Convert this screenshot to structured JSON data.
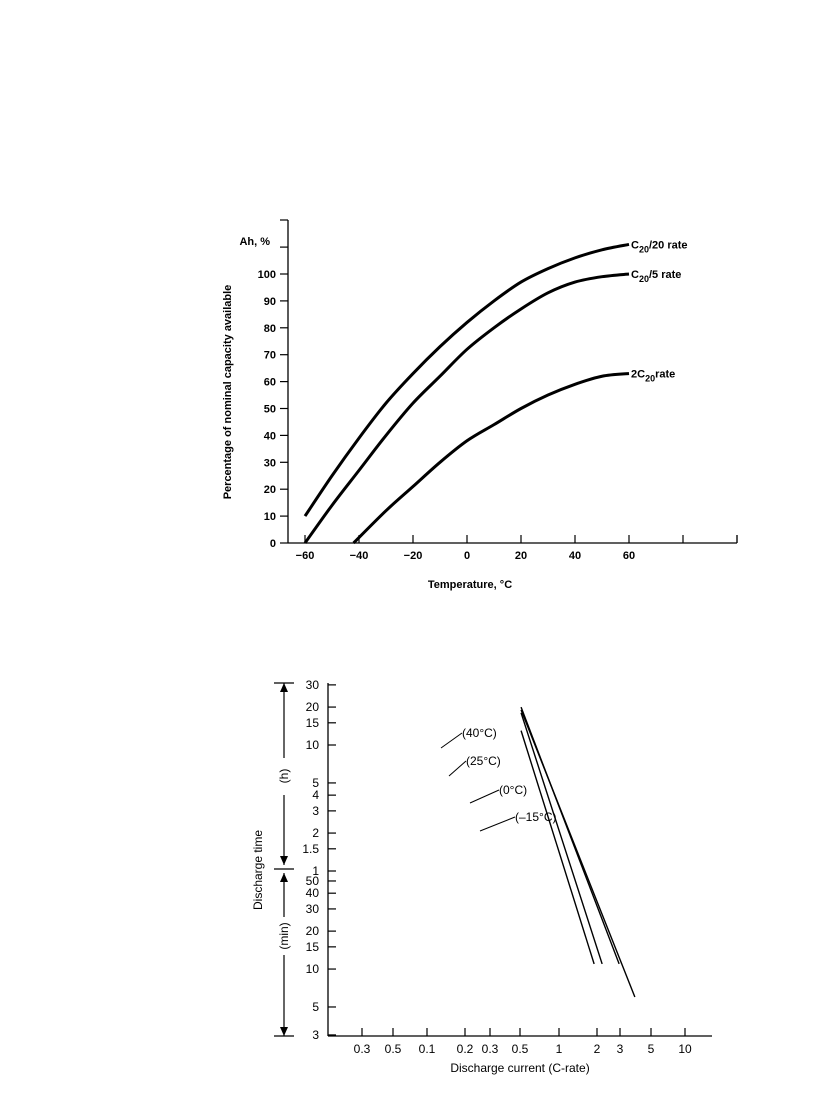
{
  "chart_data": [
    {
      "type": "line",
      "title": "",
      "xlabel": "Temperature, °C",
      "ylabel": "Percentage of nominal capacity available",
      "y_unit_label": "Ah, %",
      "xlim": [
        -70,
        100
      ],
      "ylim": [
        0,
        120
      ],
      "x_ticks": [
        -60,
        -40,
        -20,
        0,
        20,
        40,
        60
      ],
      "y_ticks": [
        0,
        10,
        20,
        30,
        40,
        50,
        60,
        70,
        80,
        90,
        100
      ],
      "grid": false,
      "series": [
        {
          "name_parts": [
            "C",
            "20",
            "/20 rate"
          ],
          "x": [
            -60,
            -50,
            -40,
            -30,
            -20,
            -10,
            0,
            10,
            20,
            30,
            40,
            50,
            60
          ],
          "y": [
            10,
            25,
            39,
            52,
            63,
            73,
            82,
            90,
            97,
            102,
            106,
            109,
            111
          ]
        },
        {
          "name_parts": [
            "C",
            "20",
            "/5 rate"
          ],
          "x": [
            -60,
            -50,
            -40,
            -30,
            -20,
            -10,
            0,
            10,
            20,
            30,
            40,
            50,
            60
          ],
          "y": [
            0,
            14,
            27,
            40,
            52,
            62,
            72,
            80,
            87,
            93,
            97,
            99,
            100
          ]
        },
        {
          "name_parts": [
            "2C",
            "20",
            "rate"
          ],
          "x": [
            -42,
            -30,
            -20,
            -10,
            0,
            10,
            20,
            30,
            40,
            50,
            60
          ],
          "y": [
            0,
            12,
            21,
            30,
            38,
            44,
            50,
            55,
            59,
            62,
            63
          ]
        }
      ]
    },
    {
      "type": "line",
      "title": "",
      "xlabel": "Discharge current (C-rate)",
      "ylabel": "Discharge time",
      "y_unit_labels": [
        "(h)",
        "(min)"
      ],
      "x_tick_labels": [
        "0.3",
        "0.5",
        "0.1",
        "0.2",
        "0.3",
        "0.5",
        "1",
        "2",
        "3",
        "5",
        "10"
      ],
      "y_tick_labels_hours": [
        "30",
        "20",
        "15",
        "10",
        "5",
        "4",
        "3",
        "2",
        "1.5",
        "1"
      ],
      "y_tick_labels_minutes": [
        "50",
        "40",
        "30",
        "20",
        "15",
        "10",
        "5",
        "3"
      ],
      "scale": "log-log",
      "grid": false,
      "series": [
        {
          "name": "(40°C)",
          "x": [
            0.5,
            3.0
          ],
          "y_hours": [
            20,
            0.183
          ]
        },
        {
          "name": "(25°C)",
          "x": [
            0.5,
            4.0
          ],
          "y_hours": [
            19,
            0.1
          ]
        },
        {
          "name": "(0°C)",
          "x": [
            0.5,
            2.2
          ],
          "y_hours": [
            18,
            0.183
          ]
        },
        {
          "name": "(–15°C)",
          "x": [
            0.5,
            1.9
          ],
          "y_hours": [
            13,
            0.183
          ]
        }
      ]
    }
  ]
}
